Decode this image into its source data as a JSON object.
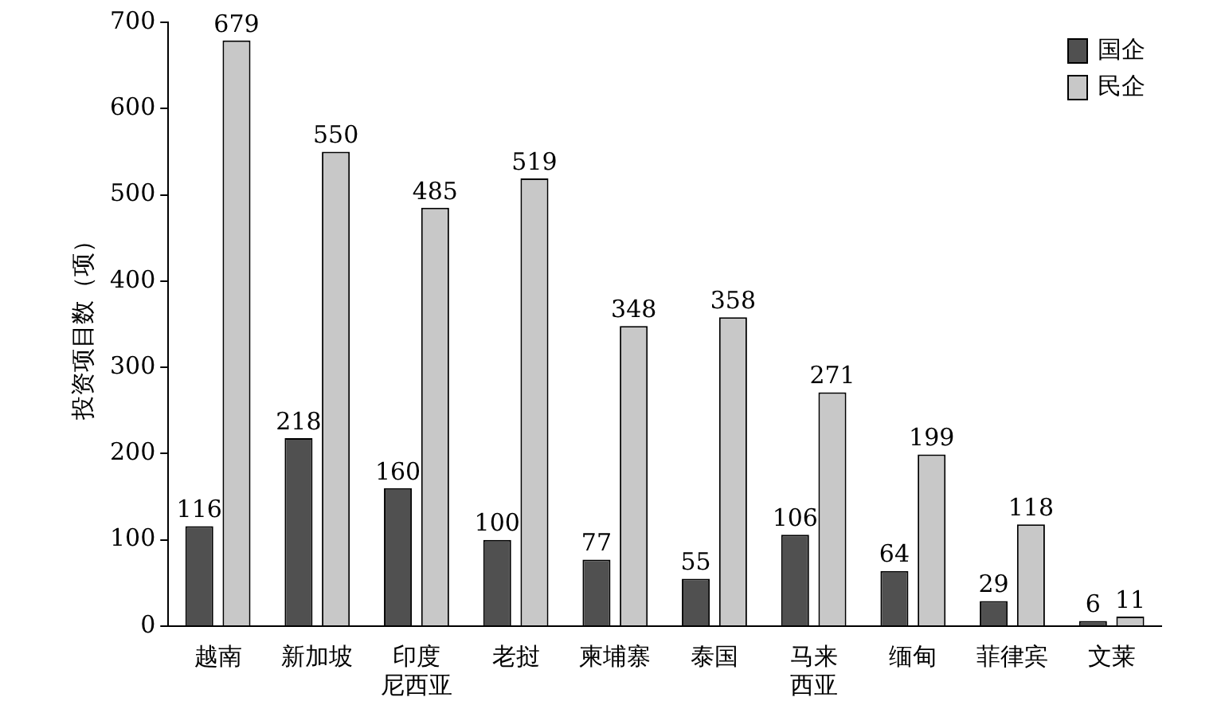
{
  "chart_data": {
    "type": "bar",
    "ylabel": "投资项目数（项）",
    "categories": [
      "越南",
      "新加坡",
      "印度尼西亚",
      "老挝",
      "柬埔寨",
      "泰国",
      "马来西亚",
      "缅甸",
      "菲律宾",
      "文莱"
    ],
    "series": [
      {
        "name": "国企",
        "color": "#505050",
        "values": [
          116,
          218,
          160,
          100,
          77,
          55,
          106,
          64,
          29,
          6
        ]
      },
      {
        "name": "民企",
        "color": "#c8c8c8",
        "values": [
          679,
          550,
          485,
          519,
          348,
          358,
          271,
          199,
          118,
          11
        ]
      }
    ],
    "ylim": [
      0,
      700
    ],
    "yticks": [
      0,
      100,
      200,
      300,
      400,
      500,
      600,
      700
    ],
    "grid": false,
    "legend": "top right",
    "data_labels": true
  }
}
